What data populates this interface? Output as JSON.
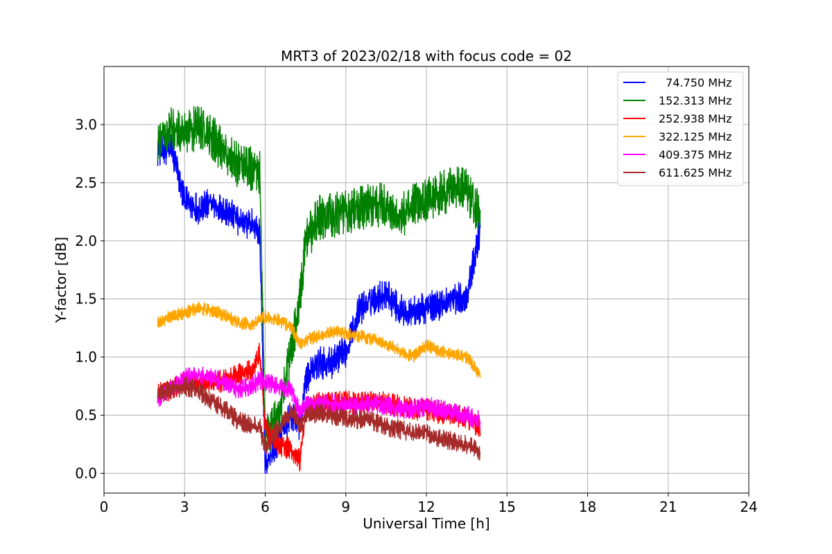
{
  "chart_data": {
    "type": "line",
    "title": "MRT3 of 2023/02/18 with focus code = 02",
    "xlabel": "Universal Time [h]",
    "ylabel": "Y-factor [dB]",
    "xlim": [
      0,
      24
    ],
    "ylim": [
      -0.17,
      3.5
    ],
    "x_ticks": [
      "0",
      "3",
      "6",
      "9",
      "12",
      "15",
      "18",
      "21",
      "24"
    ],
    "y_ticks": [
      "0.0",
      "0.5",
      "1.0",
      "1.5",
      "2.0",
      "2.5",
      "3.0"
    ],
    "grid": true,
    "legend_position": "top-right",
    "x": [
      2.0,
      2.5,
      3.0,
      3.5,
      4.0,
      4.5,
      5.0,
      5.5,
      5.8,
      6.0,
      6.5,
      7.0,
      7.3,
      7.5,
      8.0,
      8.5,
      9.0,
      9.5,
      10.0,
      10.5,
      11.0,
      11.5,
      12.0,
      12.5,
      13.0,
      13.5,
      14.0
    ],
    "series": [
      {
        "name": "  74.750 MHz",
        "color": "#0000ff",
        "noise": 0.1,
        "values": [
          2.78,
          2.8,
          2.35,
          2.28,
          2.32,
          2.25,
          2.18,
          2.15,
          2.05,
          0.05,
          0.3,
          0.5,
          0.4,
          0.8,
          0.95,
          0.95,
          1.05,
          1.4,
          1.5,
          1.55,
          1.4,
          1.4,
          1.42,
          1.45,
          1.5,
          1.52,
          2.1
        ]
      },
      {
        "name": "152.313 MHz",
        "color": "#008000",
        "noise": 0.14,
        "values": [
          2.85,
          3.0,
          2.92,
          2.98,
          2.9,
          2.75,
          2.65,
          2.62,
          2.6,
          0.3,
          0.5,
          1.1,
          1.5,
          2.0,
          2.2,
          2.22,
          2.25,
          2.28,
          2.32,
          2.3,
          2.2,
          2.3,
          2.35,
          2.4,
          2.45,
          2.45,
          2.2
        ]
      },
      {
        "name": "252.938 MHz",
        "color": "#ff0000",
        "noise": 0.07,
        "values": [
          0.68,
          0.72,
          0.78,
          0.76,
          0.78,
          0.8,
          0.85,
          0.88,
          1.05,
          0.4,
          0.25,
          0.2,
          0.1,
          0.55,
          0.6,
          0.6,
          0.62,
          0.6,
          0.62,
          0.6,
          0.58,
          0.55,
          0.55,
          0.52,
          0.5,
          0.48,
          0.4
        ]
      },
      {
        "name": "322.125 MHz",
        "color": "#ffa500",
        "noise": 0.04,
        "values": [
          1.3,
          1.35,
          1.38,
          1.42,
          1.4,
          1.36,
          1.3,
          1.28,
          1.32,
          1.35,
          1.32,
          1.25,
          1.1,
          1.15,
          1.18,
          1.22,
          1.2,
          1.18,
          1.15,
          1.12,
          1.05,
          1.0,
          1.1,
          1.05,
          1.02,
          1.0,
          0.85
        ]
      },
      {
        "name": "409.375 MHz",
        "color": "#ff00ff",
        "noise": 0.06,
        "values": [
          0.65,
          0.72,
          0.82,
          0.85,
          0.82,
          0.78,
          0.72,
          0.75,
          0.8,
          0.78,
          0.75,
          0.7,
          0.5,
          0.58,
          0.6,
          0.6,
          0.58,
          0.58,
          0.6,
          0.58,
          0.55,
          0.55,
          0.58,
          0.55,
          0.52,
          0.5,
          0.45
        ]
      },
      {
        "name": "611.625 MHz",
        "color": "#a52a2a",
        "noise": 0.06,
        "values": [
          0.68,
          0.72,
          0.75,
          0.72,
          0.62,
          0.55,
          0.45,
          0.42,
          0.4,
          0.2,
          0.4,
          0.55,
          0.38,
          0.5,
          0.52,
          0.5,
          0.48,
          0.46,
          0.45,
          0.4,
          0.38,
          0.35,
          0.35,
          0.3,
          0.28,
          0.25,
          0.18
        ]
      }
    ]
  }
}
